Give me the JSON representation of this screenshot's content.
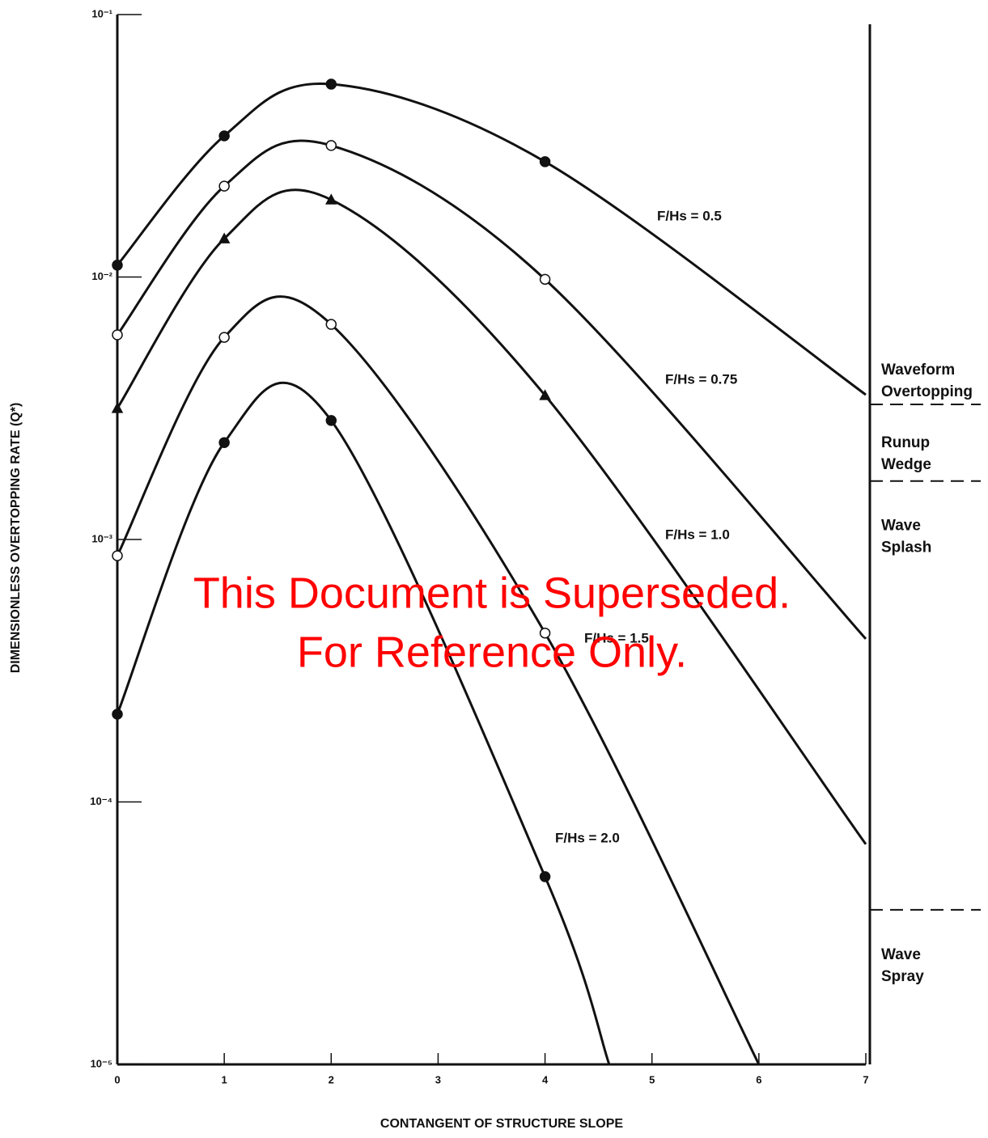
{
  "chart_data": {
    "type": "line",
    "xlabel": "CONTANGENT OF STRUCTURE SLOPE",
    "ylabel": "DIMENSIONLESS OVERTOPPING RATE (Q*)",
    "xlim": [
      0,
      7
    ],
    "xticks": [
      0,
      1,
      2,
      3,
      4,
      5,
      6,
      7
    ],
    "ylim": [
      1e-05,
      0.1
    ],
    "log_y": true,
    "yticks": [
      {
        "value": 0.1,
        "label": "10⁻¹"
      },
      {
        "value": 0.01,
        "label": "10⁻²"
      },
      {
        "value": 0.001,
        "label": "10⁻³"
      },
      {
        "value": 0.0001,
        "label": "10⁻⁴"
      },
      {
        "value": 1e-05,
        "label": "10⁻⁵"
      }
    ],
    "series": [
      {
        "name": "F/Hs = 0.5",
        "color": "#111",
        "marker": "filled-circle",
        "x": [
          0,
          1,
          2,
          4
        ],
        "values": [
          0.0111,
          0.0345,
          0.0543,
          0.0275
        ],
        "tail_x": [
          7
        ],
        "tail_values": [
          0.00356
        ]
      },
      {
        "name": "F/Hs = 0.75",
        "color": "#111",
        "marker": "open-circle",
        "x": [
          0,
          1,
          2,
          4
        ],
        "values": [
          0.00602,
          0.0222,
          0.0317,
          0.0098
        ],
        "tail_x": [
          7
        ],
        "tail_values": [
          0.000418
        ]
      },
      {
        "name": "F/Hs = 1.0",
        "color": "#111",
        "marker": "triangle",
        "x": [
          0,
          1,
          2,
          4
        ],
        "values": [
          0.00316,
          0.014,
          0.0197,
          0.00354
        ],
        "tail_x": [
          7
        ],
        "tail_values": [
          6.9e-05
        ]
      },
      {
        "name": "F/Hs = 1.5",
        "color": "#111",
        "marker": "open-circle",
        "x": [
          0,
          1,
          2,
          4
        ],
        "values": [
          0.000867,
          0.00589,
          0.0066,
          0.00044
        ],
        "tail_x": [
          6
        ],
        "tail_values": [
          1e-05
        ]
      },
      {
        "name": "F/Hs = 2.0",
        "color": "#111",
        "marker": "filled-circle",
        "x": [
          0,
          1,
          2,
          4
        ],
        "values": [
          0.000216,
          0.00234,
          0.00284,
          5.19e-05
        ],
        "tail_x": [
          4.6
        ],
        "tail_values": [
          1e-05
        ]
      }
    ],
    "zones": [
      "Waveform Overtopping",
      "Runup Wedge",
      "Wave Splash",
      "Wave Spray"
    ],
    "zone_boundaries": [
      0.00327,
      0.00167,
      3.88e-05
    ],
    "watermark": [
      "This Document is Superseded.",
      "For Reference Only."
    ]
  }
}
